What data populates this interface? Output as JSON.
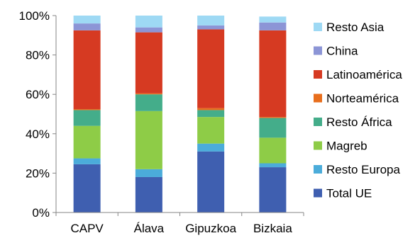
{
  "chart_data": {
    "type": "bar",
    "stacked": true,
    "title": "",
    "xlabel": "",
    "ylabel": "",
    "ylim": [
      0,
      100
    ],
    "y_ticks": [
      "0%",
      "20%",
      "40%",
      "60%",
      "80%",
      "100%"
    ],
    "categories": [
      "CAPV",
      "Álava",
      "Gipuzkoa",
      "Bizkaia"
    ],
    "series": [
      {
        "name": "Total UE",
        "color": "#3F5FB0",
        "values": [
          24.5,
          18.0,
          31.0,
          23.0
        ]
      },
      {
        "name": "Resto Europa",
        "color": "#4BACDA",
        "values": [
          3.0,
          4.0,
          4.0,
          2.0
        ]
      },
      {
        "name": "Magreb",
        "color": "#8ECC47",
        "values": [
          16.5,
          29.5,
          13.5,
          13.0
        ]
      },
      {
        "name": "Resto África",
        "color": "#44AD8A",
        "values": [
          8.0,
          8.5,
          3.5,
          10.0
        ]
      },
      {
        "name": "Norteamérica",
        "color": "#E86E1C",
        "values": [
          0.5,
          0.5,
          1.0,
          0.5
        ]
      },
      {
        "name": "Latinoamérica",
        "color": "#D63A22",
        "values": [
          40.0,
          31.0,
          40.0,
          44.0
        ]
      },
      {
        "name": "China",
        "color": "#8C95D6",
        "values": [
          3.5,
          2.5,
          2.0,
          4.0
        ]
      },
      {
        "name": "Resto Asia",
        "color": "#9ED9F4",
        "values": [
          4.0,
          6.0,
          5.0,
          3.0
        ]
      }
    ],
    "legend_position": "right",
    "grid": false
  }
}
